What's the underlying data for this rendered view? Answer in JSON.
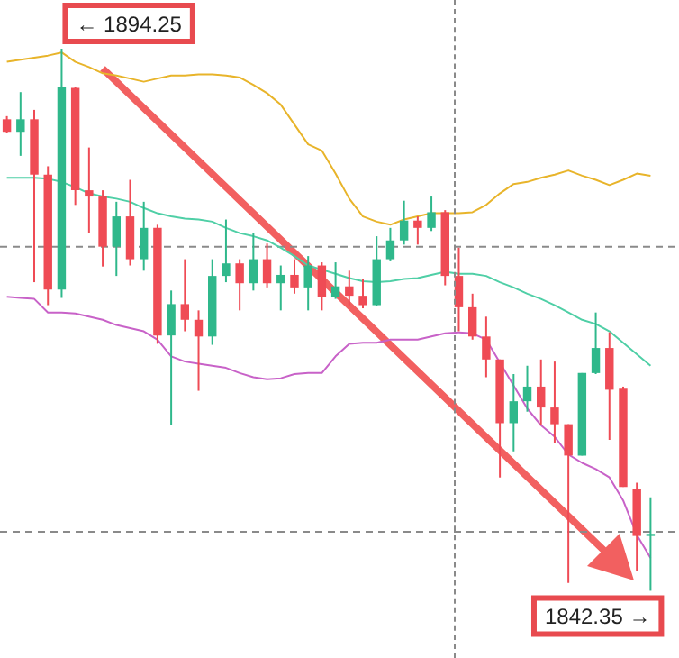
{
  "chart_data": {
    "type": "candlestick",
    "categories": [
      null,
      null,
      null,
      null,
      null,
      null,
      null,
      null,
      null,
      null,
      null,
      null,
      null,
      null,
      null,
      null,
      null,
      null,
      null,
      null,
      null,
      null,
      null,
      null,
      null,
      null,
      null,
      null,
      null,
      null,
      null,
      null,
      null,
      null,
      null,
      null,
      null,
      null,
      null,
      null,
      null,
      null,
      null,
      null,
      null,
      null,
      null,
      null
    ],
    "ohlc": [
      [
        1887.5,
        1887.8,
        1886.2,
        1886.3
      ],
      [
        1886.3,
        1890.1,
        1884.0,
        1887.5
      ],
      [
        1887.5,
        1888.4,
        1871.9,
        1882.2
      ],
      [
        1882.2,
        1883.0,
        1869.7,
        1871.2
      ],
      [
        1871.2,
        1894.25,
        1870.4,
        1890.6
      ],
      [
        1890.5,
        1890.6,
        1879.3,
        1880.7
      ],
      [
        1880.7,
        1884.8,
        1876.6,
        1880.1
      ],
      [
        1880.1,
        1880.7,
        1873.4,
        1875.3
      ],
      [
        1875.3,
        1879.6,
        1872.5,
        1878.2
      ],
      [
        1878.2,
        1881.7,
        1873.5,
        1874.1
      ],
      [
        1874.1,
        1879.6,
        1873.0,
        1877.1
      ],
      [
        1877.1,
        1877.4,
        1866.0,
        1866.8
      ],
      [
        1866.8,
        1871.1,
        1858.2,
        1869.8
      ],
      [
        1869.8,
        1874.1,
        1867.2,
        1868.3
      ],
      [
        1868.3,
        1869.2,
        1861.5,
        1866.7
      ],
      [
        1866.7,
        1874.1,
        1865.9,
        1872.5
      ],
      [
        1872.5,
        1877.9,
        1871.9,
        1873.7
      ],
      [
        1873.7,
        1874.1,
        1869.2,
        1871.8
      ],
      [
        1871.8,
        1876.6,
        1871.1,
        1874.1
      ],
      [
        1874.1,
        1875.6,
        1871.4,
        1871.8
      ],
      [
        1871.8,
        1873.5,
        1869.2,
        1872.6
      ],
      [
        1872.6,
        1874.1,
        1870.8,
        1871.4
      ],
      [
        1871.4,
        1874.4,
        1869.2,
        1873.5
      ],
      [
        1873.5,
        1873.8,
        1869.2,
        1870.5
      ],
      [
        1870.5,
        1873.8,
        1870.3,
        1871.5
      ],
      [
        1871.5,
        1873.0,
        1869.7,
        1870.6
      ],
      [
        1870.6,
        1872.2,
        1869.4,
        1869.7
      ],
      [
        1869.7,
        1876.3,
        1869.6,
        1874.1
      ],
      [
        1874.1,
        1877.1,
        1873.9,
        1875.9
      ],
      [
        1875.9,
        1879.7,
        1875.5,
        1877.8
      ],
      [
        1877.8,
        1878.2,
        1875.5,
        1877.1
      ],
      [
        1877.1,
        1880.1,
        1876.8,
        1878.6
      ],
      [
        1878.6,
        1878.8,
        1871.6,
        1872.5
      ],
      [
        1872.5,
        1875.2,
        1867.2,
        1869.5
      ],
      [
        1869.5,
        1870.8,
        1866.4,
        1866.7
      ],
      [
        1866.7,
        1868.6,
        1862.8,
        1864.5
      ],
      [
        1864.5,
        1864.5,
        1853.2,
        1858.4
      ],
      [
        1858.4,
        1863.1,
        1855.7,
        1860.5
      ],
      [
        1860.5,
        1863.9,
        1859.5,
        1861.9
      ],
      [
        1861.9,
        1864.5,
        1858.2,
        1859.9
      ],
      [
        1859.9,
        1864.3,
        1856.5,
        1858.3
      ],
      [
        1858.3,
        1858.3,
        1843.1,
        1855.3
      ],
      [
        1855.3,
        1863.2,
        1855.3,
        1863.2
      ],
      [
        1863.2,
        1869.0,
        1863.1,
        1865.6
      ],
      [
        1865.6,
        1867.1,
        1856.8,
        1861.6
      ],
      [
        1861.7,
        1861.9,
        1852.3,
        1852.3
      ],
      [
        1852.1,
        1852.7,
        1844.2,
        1847.6
      ],
      [
        1847.6,
        1851.3,
        1842.35,
        1847.8
      ]
    ],
    "colors": [
      "#ef4b55",
      "#2fb88b",
      "#ef4b55",
      "#ef4b55",
      "#2fb88b",
      "#ef4b55",
      "#ef4b55",
      "#ef4b55",
      "#2fb88b",
      "#ef4b55",
      "#2fb88b",
      "#ef4b55",
      "#2fb88b",
      "#ef4b55",
      "#ef4b55",
      "#2fb88b",
      "#2fb88b",
      "#ef4b55",
      "#2fb88b",
      "#ef4b55",
      "#2fb88b",
      "#ef4b55",
      "#2fb88b",
      "#ef4b55",
      "#2fb88b",
      "#ef4b55",
      "#ef4b55",
      "#2fb88b",
      "#2fb88b",
      "#2fb88b",
      "#ef4b55",
      "#2fb88b",
      "#ef4b55",
      "#ef4b55",
      "#ef4b55",
      "#ef4b55",
      "#ef4b55",
      "#2fb88b",
      "#2fb88b",
      "#ef4b55",
      "#ef4b55",
      "#ef4b55",
      "#2fb88b",
      "#2fb88b",
      "#ef4b55",
      "#ef4b55",
      "#ef4b55",
      "#2fb88b"
    ],
    "series": [
      {
        "type": "line",
        "color": "#e8b42a",
        "values": [
          1893.0,
          1893.2,
          1893.4,
          1893.6,
          1893.9,
          1893.0,
          1892.5,
          1891.9,
          1891.7,
          1891.4,
          1891.1,
          1891.4,
          1891.7,
          1891.7,
          1891.8,
          1891.8,
          1891.7,
          1891.5,
          1890.8,
          1890.0,
          1888.9,
          1887.0,
          1885.1,
          1884.5,
          1882.3,
          1879.9,
          1878.2,
          1877.7,
          1877.4,
          1877.9,
          1878.2,
          1878.5,
          1878.5,
          1878.5,
          1878.6,
          1879.3,
          1880.4,
          1881.3,
          1881.5,
          1881.9,
          1882.2,
          1882.6,
          1882.1,
          1881.7,
          1881.2,
          1881.7,
          1882.3,
          1882.1
        ]
      },
      {
        "type": "line",
        "color": "#4fcfa6",
        "values": [
          1881.9,
          1881.9,
          1881.9,
          1881.8,
          1881.5,
          1881.0,
          1880.4,
          1880.1,
          1879.9,
          1879.6,
          1879.0,
          1878.5,
          1878.2,
          1878.0,
          1877.9,
          1877.7,
          1877.1,
          1876.6,
          1876.3,
          1875.9,
          1875.2,
          1874.4,
          1873.5,
          1873.1,
          1872.7,
          1872.3,
          1872.0,
          1871.9,
          1872.0,
          1872.2,
          1872.3,
          1872.6,
          1872.9,
          1872.7,
          1872.7,
          1872.5,
          1871.9,
          1871.4,
          1870.8,
          1870.3,
          1869.7,
          1869.0,
          1868.3,
          1867.9,
          1867.2,
          1866.1,
          1865.0,
          1863.9
        ]
      },
      {
        "type": "line",
        "color": "#c862c8",
        "values": [
          1870.5,
          1870.4,
          1870.3,
          1869.0,
          1869.0,
          1868.9,
          1868.6,
          1868.3,
          1867.8,
          1867.5,
          1867.2,
          1866.4,
          1864.8,
          1864.3,
          1864.1,
          1863.9,
          1863.7,
          1863.2,
          1862.8,
          1862.6,
          1862.7,
          1863.1,
          1863.2,
          1863.2,
          1864.8,
          1866.0,
          1866.1,
          1866.1,
          1866.4,
          1866.4,
          1866.4,
          1866.7,
          1867.0,
          1867.1,
          1867.0,
          1866.4,
          1864.2,
          1862.0,
          1859.8,
          1858.2,
          1857.1,
          1855.4,
          1854.6,
          1854.0,
          1853.2,
          1851.0,
          1847.7,
          1845.5
        ]
      }
    ],
    "ref_lines": [
      {
        "axis": "y",
        "value": 1875.3,
        "color": "#8a8a8a",
        "line_style": "dashed"
      },
      {
        "axis": "y",
        "value": 1848.0,
        "color": "#8a8a8a",
        "line_style": "dashed"
      }
    ],
    "annotations": [
      "← 1894.25",
      "1842.35 →"
    ]
  }
}
